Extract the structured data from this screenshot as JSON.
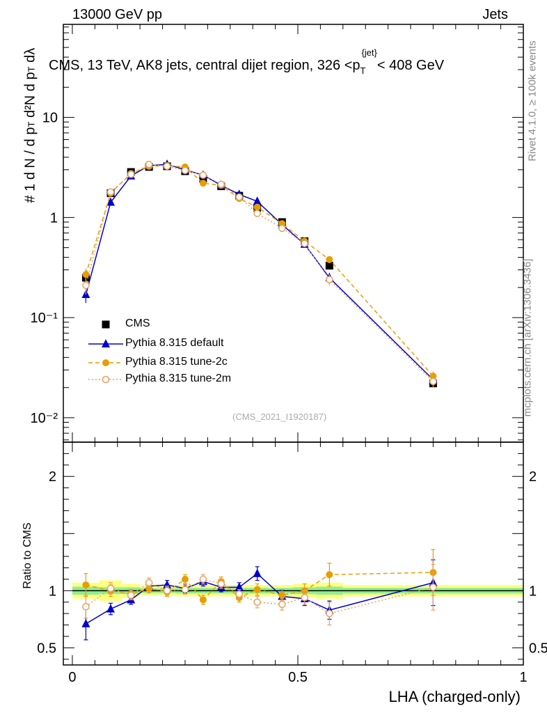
{
  "header": {
    "left": "13000 GeV pp",
    "right": "Jets"
  },
  "side_labels": {
    "rivet": "Rivet 4.1.0, ≥ 100k events",
    "mcplots": "mcplots.cern.ch [arXiv:1306.3436]"
  },
  "chart_data": [
    {
      "type": "scatter",
      "title": "CMS, 13 TeV, AK8 jets, central dijet region, 326 <p_T^{jet}< 408 GeV",
      "title_parts": {
        "main": "CMS, 13 TeV, AK8 jets, central dijet region, 326 <p",
        "sub": "T",
        "sup": "{jet}",
        "tail": "< 408 GeV"
      },
      "ylabel": "1/dN/dp_T d^2N/dp_T dλ",
      "ylabel_parts": {
        "hash": "#",
        "one": "1",
        "denom": "d N / d p",
        "num": "d²N",
        "num2": "d p",
        "sub": "T",
        "lam": "dλ"
      },
      "xlabel": "LHA (charged-only)",
      "yscale": "log",
      "xlim": [
        -0.02,
        1.0
      ],
      "ylim": [
        0.0057,
        85
      ],
      "y_ticks": [
        "10⁻²",
        "10⁻¹",
        "1",
        "10"
      ],
      "x_ticks": [
        "0",
        "0.5",
        "1"
      ],
      "watermark": "(CMS_2021_I1920187)",
      "legend_position": "bottom-left",
      "x": [
        0.03,
        0.085,
        0.13,
        0.17,
        0.21,
        0.25,
        0.29,
        0.33,
        0.37,
        0.41,
        0.465,
        0.515,
        0.57,
        0.8
      ],
      "series": [
        {
          "name": "CMS",
          "marker": "square",
          "color": "#000000",
          "values": [
            0.25,
            1.75,
            2.85,
            3.2,
            3.25,
            2.9,
            2.45,
            2.05,
            1.65,
            1.25,
            0.9,
            0.58,
            0.33,
            0.022
          ]
        },
        {
          "name": "Pythia 8.315 default",
          "marker": "triangle",
          "color": "#0000cc",
          "line": "solid",
          "values": [
            0.17,
            1.42,
            2.6,
            3.3,
            3.4,
            3.0,
            2.65,
            2.1,
            1.7,
            1.45,
            0.85,
            0.54,
            0.25,
            0.024
          ],
          "errors": [
            0.03,
            0.1,
            0.1,
            0.1,
            0.1,
            0.1,
            0.1,
            0.08,
            0.07,
            0.06,
            0.05,
            0.04,
            0.03,
            0.003
          ]
        },
        {
          "name": "Pythia 8.315 tune-2c",
          "marker": "circle",
          "color": "#e69e00",
          "line": "dashed",
          "values": [
            0.27,
            1.75,
            2.75,
            3.25,
            3.3,
            3.2,
            2.2,
            2.1,
            1.55,
            1.27,
            0.87,
            0.58,
            0.38,
            0.026
          ],
          "errors": [
            0.04,
            0.1,
            0.1,
            0.1,
            0.1,
            0.1,
            0.1,
            0.08,
            0.07,
            0.06,
            0.05,
            0.04,
            0.03,
            0.003
          ]
        },
        {
          "name": "Pythia 8.315 tune-2m",
          "marker": "open-circle",
          "color": "#e6a060",
          "line": "dotted",
          "values": [
            0.21,
            1.8,
            2.7,
            3.4,
            3.25,
            2.95,
            2.65,
            2.15,
            1.6,
            1.1,
            0.78,
            0.55,
            0.24,
            0.023
          ],
          "errors": [
            0.04,
            0.1,
            0.1,
            0.1,
            0.1,
            0.1,
            0.1,
            0.08,
            0.07,
            0.06,
            0.05,
            0.04,
            0.03,
            0.003
          ]
        }
      ]
    },
    {
      "type": "scatter",
      "ylabel": "Ratio to CMS",
      "xlabel": "LHA (charged-only)",
      "ylim": [
        0.35,
        2.3
      ],
      "y_ticks": [
        "0.5",
        "1",
        "2"
      ],
      "x": [
        0.03,
        0.085,
        0.13,
        0.17,
        0.21,
        0.25,
        0.29,
        0.33,
        0.37,
        0.41,
        0.465,
        0.515,
        0.57,
        0.8
      ],
      "band_edges": [
        0.0,
        0.06,
        0.11,
        0.15,
        0.19,
        0.23,
        0.27,
        0.31,
        0.35,
        0.39,
        0.43,
        0.49,
        0.54,
        0.6,
        1.0
      ],
      "band_inner": [
        0.035,
        0.03,
        0.03,
        0.02,
        0.02,
        0.025,
        0.025,
        0.025,
        0.025,
        0.025,
        0.025,
        0.03,
        0.035,
        0.025
      ],
      "band_outer": [
        0.07,
        0.09,
        0.06,
        0.04,
        0.04,
        0.05,
        0.05,
        0.05,
        0.05,
        0.05,
        0.05,
        0.06,
        0.07,
        0.05
      ],
      "series": [
        {
          "name": "Pythia 8.315 default",
          "color": "#0000cc",
          "line": "solid",
          "marker": "triangle",
          "values": [
            0.71,
            0.84,
            0.92,
            1.04,
            1.05,
            1.02,
            1.08,
            1.03,
            1.03,
            1.15,
            0.95,
            0.93,
            0.83,
            1.07
          ],
          "errors": [
            0.14,
            0.05,
            0.04,
            0.04,
            0.04,
            0.04,
            0.04,
            0.04,
            0.04,
            0.06,
            0.05,
            0.06,
            0.08,
            0.2
          ]
        },
        {
          "name": "Pythia 8.315 tune-2c",
          "color": "#e69e00",
          "line": "dashed",
          "marker": "circle",
          "values": [
            1.05,
            1.0,
            0.97,
            1.02,
            0.99,
            1.1,
            0.92,
            1.08,
            0.94,
            1.01,
            0.96,
            1.0,
            1.14,
            1.16
          ],
          "errors": [
            0.1,
            0.05,
            0.04,
            0.04,
            0.04,
            0.04,
            0.04,
            0.04,
            0.04,
            0.05,
            0.05,
            0.06,
            0.1,
            0.2
          ]
        },
        {
          "name": "Pythia 8.315 tune-2m",
          "color": "#e6a060",
          "line": "dotted",
          "marker": "open-circle",
          "values": [
            0.86,
            1.02,
            0.96,
            1.07,
            1.0,
            1.01,
            1.1,
            1.06,
            0.97,
            0.9,
            0.88,
            0.94,
            0.8,
            1.03
          ],
          "errors": [
            0.1,
            0.05,
            0.04,
            0.04,
            0.04,
            0.04,
            0.04,
            0.04,
            0.04,
            0.05,
            0.05,
            0.06,
            0.1,
            0.2
          ]
        }
      ]
    }
  ]
}
